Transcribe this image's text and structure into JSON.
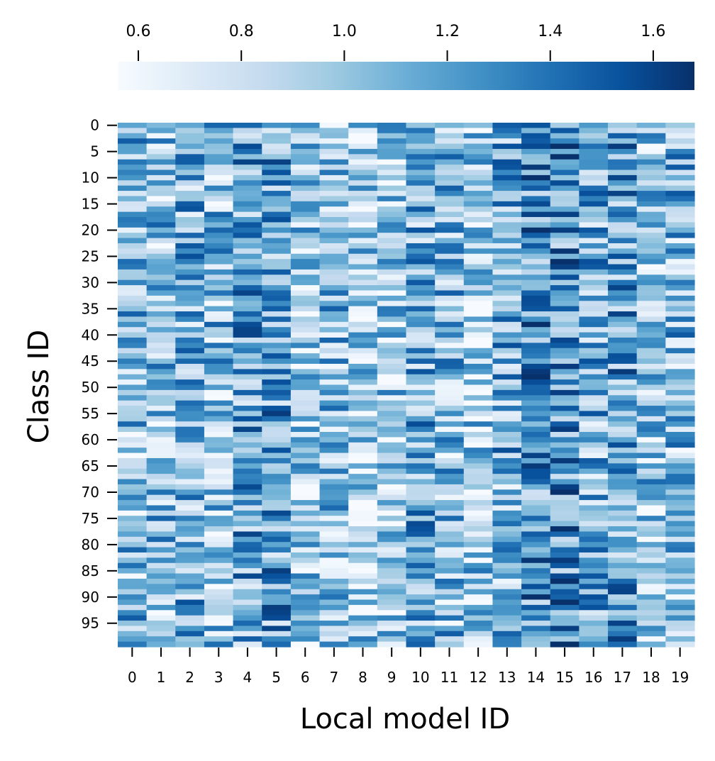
{
  "chart_data": {
    "type": "heatmap",
    "title": "",
    "xlabel": "Local model ID",
    "ylabel": "Class ID",
    "cmap": "Blues",
    "colors": {
      "low": "#f7fbff",
      "high": "#08306b"
    },
    "x_ticks": [
      "0",
      "1",
      "2",
      "3",
      "4",
      "5",
      "6",
      "7",
      "8",
      "9",
      "10",
      "11",
      "12",
      "13",
      "14",
      "15",
      "16",
      "17",
      "18",
      "19"
    ],
    "y_ticks": [
      "0",
      "5",
      "10",
      "15",
      "20",
      "25",
      "30",
      "35",
      "40",
      "45",
      "50",
      "55",
      "60",
      "65",
      "70",
      "75",
      "80",
      "85",
      "90",
      "95"
    ],
    "n_rows": 100,
    "n_cols": 20,
    "colorbar": {
      "position": "top",
      "vmin": 0.56,
      "vmax": 1.68,
      "ticks": [
        "0.6",
        "0.8",
        "1.0",
        "1.2",
        "1.4",
        "1.6"
      ]
    },
    "column_mean_values": [
      1.02,
      1.0,
      1.08,
      1.0,
      1.16,
      1.16,
      0.92,
      1.06,
      0.9,
      0.92,
      1.12,
      1.04,
      0.94,
      1.08,
      1.26,
      1.26,
      1.1,
      1.18,
      0.98,
      1.04
    ],
    "row_values_note": "Each cell value is in the range 0.56–1.68; per-cell values were estimated per column from the colormap (noise around the column mean)."
  }
}
